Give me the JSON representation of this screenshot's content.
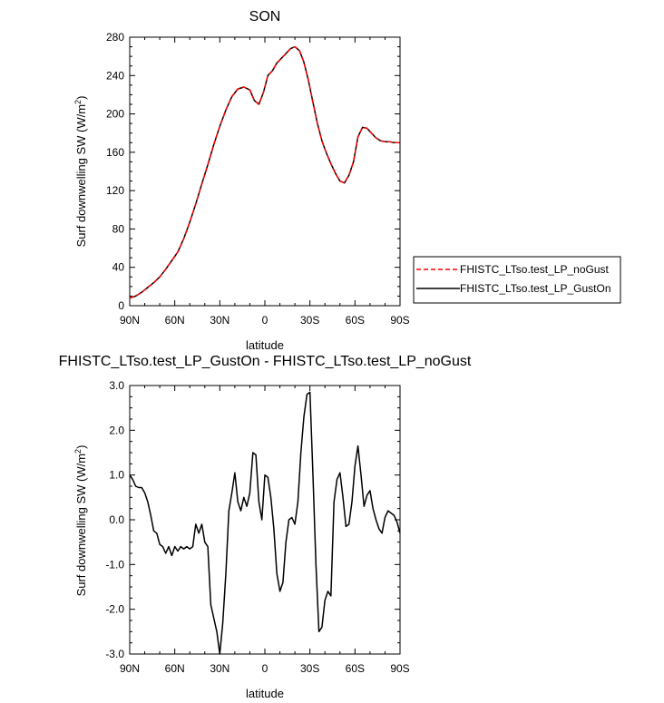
{
  "chart_data": [
    {
      "type": "line",
      "title": "SON",
      "xlabel": "latitude",
      "ylabel": "Surf downwelling SW (W/m²)",
      "xlim": [
        -90,
        90
      ],
      "ylim": [
        0,
        280
      ],
      "xticks": [
        -90,
        -60,
        -30,
        0,
        30,
        60,
        90
      ],
      "xtick_labels": [
        "90N",
        "60N",
        "30N",
        "0",
        "30S",
        "60S",
        "90S"
      ],
      "yticks": [
        0,
        40,
        80,
        120,
        160,
        200,
        240,
        280
      ],
      "ytick_labels": [
        "0",
        "40",
        "80",
        "120",
        "160",
        "200",
        "240",
        "280"
      ],
      "legend_position": "right",
      "x": [
        -90,
        -86,
        -82,
        -78,
        -74,
        -70,
        -66,
        -62,
        -58,
        -54,
        -50,
        -46,
        -42,
        -38,
        -34,
        -30,
        -26,
        -22,
        -18,
        -14,
        -10,
        -7,
        -4,
        -1,
        2,
        5,
        8,
        11,
        14,
        17,
        20,
        23,
        26,
        29,
        32,
        35,
        38,
        41,
        44,
        47,
        50,
        53,
        56,
        59,
        62,
        65,
        68,
        71,
        74,
        77,
        80,
        83,
        86,
        90
      ],
      "series": [
        {
          "name": "FHISTC_LTso.test_LP_noGust",
          "color": "#ff0000",
          "dash": "dashed",
          "values": [
            8,
            10,
            14,
            19,
            24,
            30,
            38,
            47,
            56,
            70,
            87,
            106,
            127,
            147,
            168,
            187,
            204,
            218,
            226,
            228,
            225,
            214,
            210,
            222,
            240,
            245,
            253,
            258,
            263,
            268,
            270,
            266,
            254,
            235,
            212,
            190,
            172,
            159,
            148,
            138,
            130,
            128,
            136,
            150,
            176,
            186,
            185,
            180,
            175,
            172,
            171,
            171,
            170,
            170
          ]
        },
        {
          "name": "FHISTC_LTso.test_LP_GustOn",
          "color": "#000000",
          "dash": "solid",
          "values": [
            8,
            10,
            14,
            19,
            24,
            30,
            38,
            47,
            56,
            70,
            87,
            106,
            127,
            147,
            168,
            187,
            204,
            218,
            226,
            228,
            225,
            214,
            210,
            222,
            240,
            245,
            253,
            258,
            263,
            268,
            270,
            266,
            254,
            235,
            212,
            190,
            172,
            159,
            148,
            138,
            130,
            128,
            136,
            150,
            176,
            186,
            185,
            180,
            175,
            172,
            171,
            171,
            170,
            170
          ]
        }
      ]
    },
    {
      "type": "line",
      "title": "FHISTC_LTso.test_LP_GustOn - FHISTC_LTso.test_LP_noGust",
      "xlabel": "latitude",
      "ylabel": "Surf downwelling SW (W/m²)",
      "xlim": [
        -90,
        90
      ],
      "ylim": [
        -3.0,
        3.0
      ],
      "xticks": [
        -90,
        -60,
        -30,
        0,
        30,
        60,
        90
      ],
      "xtick_labels": [
        "90N",
        "60N",
        "30N",
        "0",
        "30S",
        "60S",
        "90S"
      ],
      "yticks": [
        -3,
        -2,
        -1,
        0,
        1,
        2,
        3
      ],
      "ytick_labels": [
        "-3.0",
        "-2.0",
        "-1.0",
        "0.0",
        "1.0",
        "2.0",
        "3.0"
      ],
      "x": [
        -90,
        -88,
        -86,
        -84,
        -82,
        -80,
        -78,
        -76,
        -74,
        -72,
        -70,
        -68,
        -66,
        -64,
        -62,
        -60,
        -58,
        -56,
        -54,
        -52,
        -50,
        -48,
        -46,
        -44,
        -42,
        -40,
        -38,
        -36,
        -34,
        -32,
        -30,
        -28,
        -26,
        -24,
        -22,
        -20,
        -18,
        -16,
        -14,
        -12,
        -10,
        -8,
        -6,
        -4,
        -2,
        0,
        2,
        4,
        6,
        8,
        10,
        12,
        14,
        16,
        18,
        20,
        22,
        24,
        26,
        28,
        30,
        32,
        34,
        36,
        38,
        40,
        42,
        44,
        46,
        48,
        50,
        52,
        54,
        56,
        58,
        60,
        62,
        64,
        66,
        68,
        70,
        72,
        74,
        76,
        78,
        80,
        82,
        84,
        86,
        88,
        90
      ],
      "series": [
        {
          "name": "",
          "color": "#000000",
          "dash": "solid",
          "values": [
            1.0,
            0.9,
            0.75,
            0.72,
            0.72,
            0.6,
            0.4,
            0.1,
            -0.25,
            -0.3,
            -0.55,
            -0.6,
            -0.75,
            -0.6,
            -0.8,
            -0.6,
            -0.7,
            -0.6,
            -0.65,
            -0.6,
            -0.65,
            -0.6,
            -0.1,
            -0.3,
            -0.1,
            -0.5,
            -0.6,
            -1.9,
            -2.2,
            -2.5,
            -3.0,
            -2.3,
            -1.2,
            0.2,
            0.6,
            1.05,
            0.4,
            0.2,
            0.5,
            0.3,
            0.6,
            1.5,
            1.45,
            0.4,
            0.0,
            1.0,
            0.95,
            0.5,
            -0.2,
            -1.2,
            -1.6,
            -1.4,
            -0.5,
            0.0,
            0.05,
            -0.1,
            0.4,
            1.5,
            2.3,
            2.8,
            2.85,
            1.0,
            -1.0,
            -2.5,
            -2.4,
            -1.8,
            -1.6,
            -1.7,
            0.4,
            0.9,
            1.05,
            0.5,
            -0.15,
            -0.1,
            0.4,
            1.2,
            1.65,
            1.0,
            0.3,
            0.55,
            0.65,
            0.25,
            0.0,
            -0.2,
            -0.3,
            0.05,
            0.2,
            0.15,
            0.1,
            -0.05,
            -0.3
          ]
        }
      ]
    }
  ]
}
